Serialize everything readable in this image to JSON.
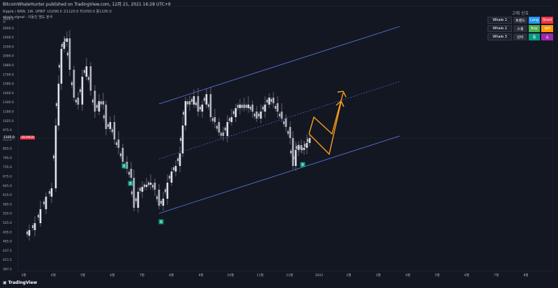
{
  "header": {
    "publisher_line": "BitcoinWhaleHunter published on TradingView.com, 12月 21, 2021 16:28 UTC+9",
    "settings_label": "KRW",
    "symbol_line": "Ripple / KRW, 1W, UPBIT  시1090.0  고1120.0  저1050.0  종1105.0",
    "indicator_line": "whale signal · 이동진 열도 분석",
    "settings_icon": "gear-icon"
  },
  "footer": {
    "logo_text": "TradingView",
    "logo_icon": "tradingview-logo-icon"
  },
  "panel": {
    "title": "고래 신호",
    "rows": [
      {
        "name": "Whale 1",
        "c2": "트렌드",
        "c3": "Long",
        "c4": "Short",
        "c3_color": "#2196f3",
        "c4_color": "#f23645"
      },
      {
        "name": "Whale 2",
        "c2": "스윙",
        "c3": "buy",
        "c4": "sell",
        "c3_color": "#4caf50",
        "c4_color": "#ff9800"
      },
      {
        "name": "Whale 3",
        "c2": "단타",
        "c3": "종",
        "c4": "숏",
        "c3_color": "#089981",
        "c4_color": "#9c27b0"
      }
    ]
  },
  "chart_data": {
    "type": "candlestick",
    "y_ticks": [
      "2800.0",
      "2600.0",
      "2400.0",
      "2200.0",
      "2000.0",
      "1880.0",
      "1700.0",
      "1580.0",
      "1460.0",
      "1340.0",
      "1180.0",
      "1025.0",
      "975.0",
      "915.0",
      "855.0",
      "795.0",
      "735.0",
      "675.0",
      "645.0",
      "615.0",
      "585.0",
      "555.0",
      "525.0",
      "495.0",
      "465.0",
      "437.5",
      "411.5",
      "387.5"
    ],
    "x_ticks": [
      "3월",
      "4월",
      "5월",
      "6월",
      "7월",
      "8월",
      "9월",
      "10월",
      "11월",
      "12월",
      "2022",
      "2월",
      "3월",
      "4월",
      "5월",
      "6월",
      "7월",
      "8월"
    ],
    "current_price_label": "1105.0",
    "time_label": "3D5M20",
    "signal_label": "B",
    "candle_colors": {
      "up": "#e0e3eb",
      "down": "#b2b5be",
      "wick": "#9598a1"
    },
    "channel_color": "#5b7fe0",
    "projection_color": "#ff9f1a",
    "signal_color": "#089981",
    "closes": [
      {
        "x": 34,
        "y": 338
      },
      {
        "x": 42,
        "y": 330
      },
      {
        "x": 50,
        "y": 320
      },
      {
        "x": 58,
        "y": 300
      },
      {
        "x": 66,
        "y": 282
      },
      {
        "x": 74,
        "y": 270
      },
      {
        "x": 80,
        "y": 180
      },
      {
        "x": 84,
        "y": 120
      },
      {
        "x": 88,
        "y": 70
      },
      {
        "x": 92,
        "y": 60
      },
      {
        "x": 96,
        "y": 55
      },
      {
        "x": 100,
        "y": 100
      },
      {
        "x": 106,
        "y": 140
      },
      {
        "x": 112,
        "y": 150
      },
      {
        "x": 118,
        "y": 110
      },
      {
        "x": 124,
        "y": 95
      },
      {
        "x": 130,
        "y": 130
      },
      {
        "x": 136,
        "y": 160
      },
      {
        "x": 142,
        "y": 145
      },
      {
        "x": 148,
        "y": 150
      },
      {
        "x": 152,
        "y": 185
      },
      {
        "x": 158,
        "y": 175
      },
      {
        "x": 164,
        "y": 200
      },
      {
        "x": 170,
        "y": 212
      },
      {
        "x": 176,
        "y": 232
      },
      {
        "x": 182,
        "y": 242
      },
      {
        "x": 188,
        "y": 255
      },
      {
        "x": 192,
        "y": 298
      },
      {
        "x": 198,
        "y": 275
      },
      {
        "x": 204,
        "y": 268
      },
      {
        "x": 210,
        "y": 265
      },
      {
        "x": 216,
        "y": 262
      },
      {
        "x": 222,
        "y": 272
      },
      {
        "x": 228,
        "y": 295
      },
      {
        "x": 234,
        "y": 285
      },
      {
        "x": 240,
        "y": 262
      },
      {
        "x": 246,
        "y": 246
      },
      {
        "x": 252,
        "y": 238
      },
      {
        "x": 258,
        "y": 220
      },
      {
        "x": 262,
        "y": 180
      },
      {
        "x": 266,
        "y": 145
      },
      {
        "x": 272,
        "y": 150
      },
      {
        "x": 278,
        "y": 138
      },
      {
        "x": 284,
        "y": 160
      },
      {
        "x": 290,
        "y": 150
      },
      {
        "x": 296,
        "y": 135
      },
      {
        "x": 302,
        "y": 168
      },
      {
        "x": 308,
        "y": 175
      },
      {
        "x": 314,
        "y": 190
      },
      {
        "x": 320,
        "y": 195
      },
      {
        "x": 326,
        "y": 175
      },
      {
        "x": 332,
        "y": 168
      },
      {
        "x": 338,
        "y": 155
      },
      {
        "x": 344,
        "y": 150
      },
      {
        "x": 350,
        "y": 155
      },
      {
        "x": 356,
        "y": 150
      },
      {
        "x": 362,
        "y": 160
      },
      {
        "x": 368,
        "y": 170
      },
      {
        "x": 374,
        "y": 160
      },
      {
        "x": 380,
        "y": 150
      },
      {
        "x": 386,
        "y": 140
      },
      {
        "x": 392,
        "y": 148
      },
      {
        "x": 398,
        "y": 160
      },
      {
        "x": 404,
        "y": 170
      },
      {
        "x": 410,
        "y": 182
      },
      {
        "x": 416,
        "y": 198
      },
      {
        "x": 420,
        "y": 238
      },
      {
        "x": 424,
        "y": 215
      },
      {
        "x": 428,
        "y": 208
      },
      {
        "x": 432,
        "y": 215
      },
      {
        "x": 436,
        "y": 212
      },
      {
        "x": 440,
        "y": 205
      },
      {
        "x": 444,
        "y": 198
      }
    ]
  }
}
